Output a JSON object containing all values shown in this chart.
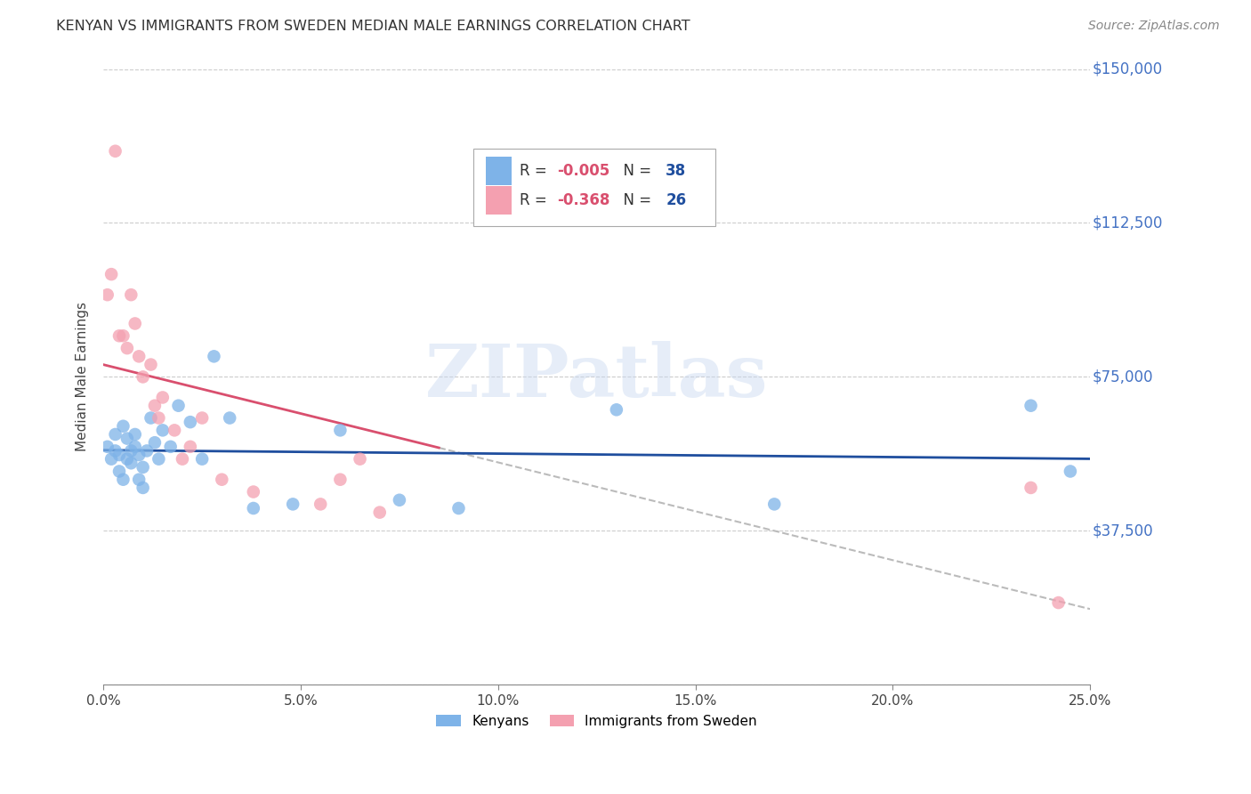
{
  "title": "KENYAN VS IMMIGRANTS FROM SWEDEN MEDIAN MALE EARNINGS CORRELATION CHART",
  "source": "Source: ZipAtlas.com",
  "ylabel": "Median Male Earnings",
  "xlabel_ticks": [
    "0.0%",
    "5.0%",
    "10.0%",
    "15.0%",
    "20.0%",
    "25.0%"
  ],
  "xlabel_vals": [
    0.0,
    0.05,
    0.1,
    0.15,
    0.2,
    0.25
  ],
  "ylabel_ticks": [
    0,
    37500,
    75000,
    112500,
    150000
  ],
  "ylabel_labels": [
    "",
    "$37,500",
    "$75,000",
    "$112,500",
    "$150,000"
  ],
  "xmin": 0.0,
  "xmax": 0.25,
  "ymin": 0,
  "ymax": 150000,
  "kenyan_color": "#7EB3E8",
  "sweden_color": "#F4A0B0",
  "kenyan_line_color": "#1F4E9E",
  "sweden_line_color": "#D94F6E",
  "R_kenyan": -0.005,
  "N_kenyan": 38,
  "R_sweden": -0.368,
  "N_sweden": 26,
  "legend_kenyan_color": "#7EB3E8",
  "legend_sweden_color": "#F4A0B0",
  "legend_R_color": "#D94F6E",
  "legend_N_color": "#1F4E9E",
  "kenyan_x": [
    0.001,
    0.002,
    0.003,
    0.003,
    0.004,
    0.004,
    0.005,
    0.005,
    0.006,
    0.006,
    0.007,
    0.007,
    0.008,
    0.008,
    0.009,
    0.009,
    0.01,
    0.01,
    0.011,
    0.012,
    0.013,
    0.014,
    0.015,
    0.017,
    0.019,
    0.022,
    0.025,
    0.028,
    0.032,
    0.038,
    0.048,
    0.06,
    0.075,
    0.09,
    0.13,
    0.17,
    0.235,
    0.245
  ],
  "kenyan_y": [
    58000,
    55000,
    61000,
    57000,
    56000,
    52000,
    63000,
    50000,
    55000,
    60000,
    57000,
    54000,
    61000,
    58000,
    50000,
    56000,
    53000,
    48000,
    57000,
    65000,
    59000,
    55000,
    62000,
    58000,
    68000,
    64000,
    55000,
    80000,
    65000,
    43000,
    44000,
    62000,
    45000,
    43000,
    67000,
    44000,
    68000,
    52000
  ],
  "sweden_x": [
    0.001,
    0.002,
    0.003,
    0.004,
    0.005,
    0.006,
    0.007,
    0.008,
    0.009,
    0.01,
    0.012,
    0.013,
    0.014,
    0.015,
    0.018,
    0.02,
    0.022,
    0.025,
    0.03,
    0.038,
    0.055,
    0.06,
    0.065,
    0.07,
    0.235,
    0.242
  ],
  "sweden_y": [
    95000,
    100000,
    130000,
    85000,
    85000,
    82000,
    95000,
    88000,
    80000,
    75000,
    78000,
    68000,
    65000,
    70000,
    62000,
    55000,
    58000,
    65000,
    50000,
    47000,
    44000,
    50000,
    55000,
    42000,
    48000,
    20000
  ],
  "background_color": "#FFFFFF",
  "watermark_text": "ZIPatlas",
  "grid_color": "#CCCCCC"
}
